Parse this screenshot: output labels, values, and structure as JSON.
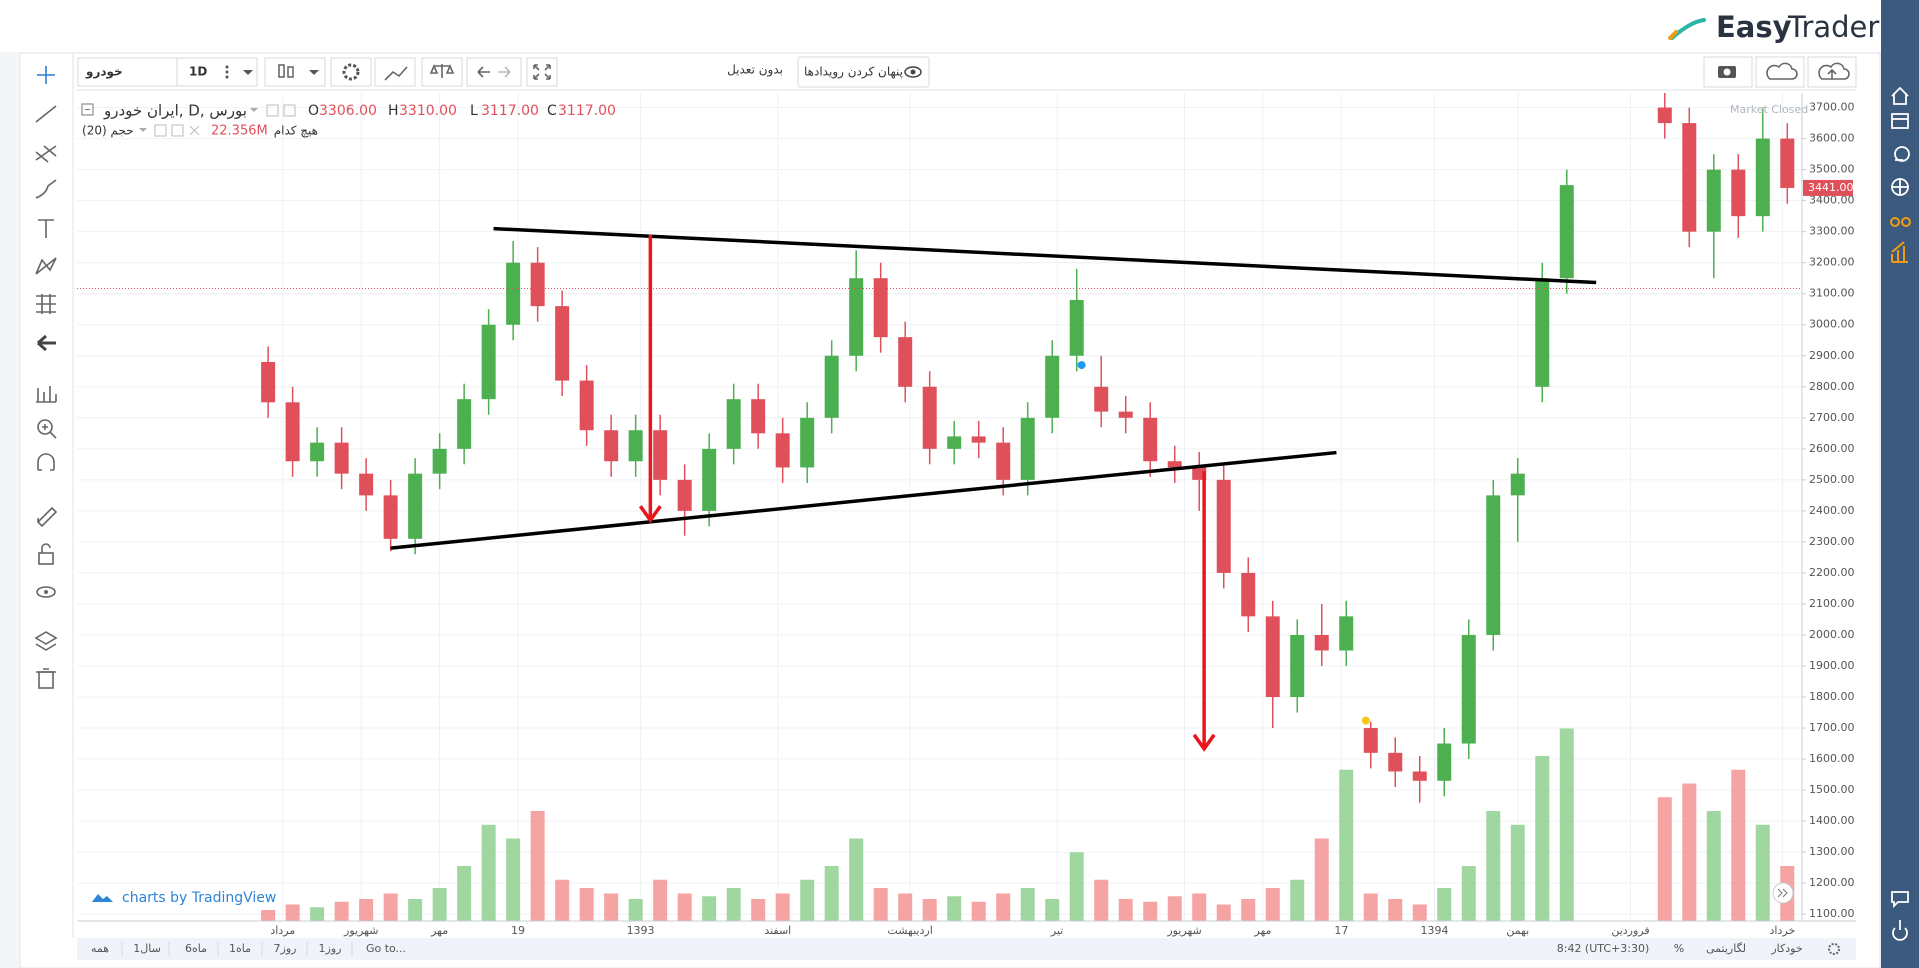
{
  "header": {
    "logo_a": "Easy",
    "logo_b": "Trader"
  },
  "toolbar": {
    "symbol": "خودرو",
    "interval": "1D",
    "adjustment": "بدون تعدیل",
    "hide_events": "پنهان کردن رویدادها"
  },
  "legend": {
    "title": "ایران خودرو, D, بورس",
    "volume_name": "حجم (20)",
    "volume_value": "22.356M",
    "volume_ma": "هیچ کدام",
    "market_status": "Market Closed"
  },
  "watermark": "charts by TradingView",
  "footer": {
    "ranges": [
      "همه",
      "1سال",
      "6ماه",
      "1ماه",
      "7روز",
      "1روز"
    ],
    "goto": "Go to...",
    "clock": "8:42 (UTC+3:30)",
    "percent": "%",
    "log": "لگاریتمی",
    "auto": "خودکار"
  },
  "chart_data": {
    "type": "candlestick",
    "ohlc": {
      "labels": [
        "O",
        "H",
        "L",
        "C"
      ],
      "values": [
        3306,
        3310,
        3117,
        3117
      ],
      "value_labels": [
        "3306.00",
        "3310.00",
        "3117.00",
        "3117.00"
      ]
    },
    "last_price": {
      "value": 3441,
      "label": "3441.00"
    },
    "up_color": "#4caf50",
    "down_color": "#e0505b",
    "volume_up_color": "#8fd08f",
    "volume_down_color": "#f39393",
    "x": [
      0,
      5,
      10,
      15,
      20,
      25,
      30,
      35,
      40,
      45,
      50,
      55,
      60,
      65,
      70,
      75,
      80,
      85,
      90,
      95,
      100,
      105,
      110,
      115,
      120,
      125,
      130,
      135,
      140,
      145,
      150,
      155,
      160,
      165,
      170,
      175,
      180,
      185,
      190,
      195,
      200,
      205,
      210,
      215,
      220,
      225,
      230,
      235,
      240,
      245,
      250,
      255,
      260,
      265,
      285,
      290,
      295,
      300,
      305,
      310
    ],
    "open": [
      2880,
      2750,
      2560,
      2620,
      2520,
      2450,
      2310,
      2520,
      2600,
      2760,
      3000,
      3200,
      3060,
      2820,
      2660,
      2560,
      2660,
      2500,
      2400,
      2600,
      2760,
      2650,
      2540,
      2700,
      2900,
      3150,
      2960,
      2800,
      2600,
      2640,
      2620,
      2500,
      2700,
      2900,
      2800,
      2720,
      2700,
      2560,
      2540,
      2500,
      2200,
      2060,
      1800,
      2000,
      1950,
      1700,
      1620,
      1560,
      1530,
      1650,
      2000,
      2450,
      2800,
      3150,
      3700,
      3650,
      3300,
      3500,
      3350,
      3600
    ],
    "high": [
      2930,
      2800,
      2670,
      2670,
      2570,
      2500,
      2570,
      2650,
      2810,
      3050,
      3270,
      3250,
      3110,
      2870,
      2710,
      2710,
      2710,
      2550,
      2650,
      2810,
      2810,
      2700,
      2750,
      2950,
      3240,
      3200,
      3010,
      2850,
      2690,
      2690,
      2670,
      2750,
      2950,
      3180,
      2900,
      2770,
      2750,
      2610,
      2590,
      2550,
      2250,
      2110,
      2050,
      2100,
      2110,
      1720,
      1670,
      1610,
      1700,
      2050,
      2500,
      2570,
      3200,
      3500,
      3760,
      3700,
      3550,
      3550,
      3700,
      3650
    ],
    "low": [
      2700,
      2510,
      2510,
      2470,
      2400,
      2270,
      2260,
      2470,
      2550,
      2710,
      2950,
      3010,
      2770,
      2610,
      2510,
      2510,
      2450,
      2320,
      2350,
      2550,
      2600,
      2490,
      2490,
      2650,
      2850,
      2910,
      2750,
      2550,
      2550,
      2570,
      2450,
      2450,
      2650,
      2850,
      2670,
      2650,
      2510,
      2490,
      2400,
      2150,
      2010,
      1700,
      1750,
      1900,
      1900,
      1570,
      1510,
      1460,
      1480,
      1600,
      1950,
      2300,
      2750,
      3100,
      3600,
      3250,
      3150,
      3280,
      3300,
      3390
    ],
    "close": [
      2750,
      2560,
      2620,
      2520,
      2450,
      2310,
      2520,
      2600,
      2760,
      3000,
      3200,
      3060,
      2820,
      2660,
      2560,
      2660,
      2500,
      2400,
      2600,
      2760,
      2650,
      2540,
      2700,
      2900,
      3150,
      2960,
      2800,
      2600,
      2640,
      2620,
      2500,
      2700,
      2900,
      3080,
      2720,
      2700,
      2560,
      2540,
      2500,
      2200,
      2060,
      1800,
      2000,
      1950,
      2060,
      1620,
      1560,
      1530,
      1650,
      2000,
      2450,
      2520,
      3150,
      3450,
      3650,
      3300,
      3500,
      3350,
      3600,
      3441
    ],
    "volume": [
      4,
      6,
      5,
      7,
      8,
      10,
      8,
      12,
      20,
      35,
      30,
      40,
      15,
      12,
      10,
      8,
      15,
      10,
      9,
      12,
      8,
      10,
      15,
      20,
      30,
      12,
      10,
      8,
      9,
      7,
      10,
      12,
      8,
      25,
      15,
      8,
      7,
      9,
      10,
      6,
      8,
      12,
      15,
      30,
      55,
      10,
      8,
      6,
      12,
      20,
      40,
      35,
      60,
      70,
      45,
      50,
      40,
      55,
      35,
      20
    ],
    "vlim": [
      0,
      80
    ],
    "xlim": [
      -39,
      313
    ],
    "ylim": [
      1078,
      3747
    ],
    "xticks": [
      {
        "value": 3,
        "label": "مرداد"
      },
      {
        "value": 19,
        "label": "شهریور"
      },
      {
        "value": 35,
        "label": "مهر"
      },
      {
        "value": 51,
        "label": "19"
      },
      {
        "value": 76,
        "label": "1393"
      },
      {
        "value": 104,
        "label": "اسفند"
      },
      {
        "value": 131,
        "label": "اردیبهشت"
      },
      {
        "value": 161,
        "label": "تیر"
      },
      {
        "value": 187,
        "label": "شهریور"
      },
      {
        "value": 203,
        "label": "مهر"
      },
      {
        "value": 219,
        "label": "17"
      },
      {
        "value": 238,
        "label": "1394"
      },
      {
        "value": 255,
        "label": "بهمن"
      },
      {
        "value": 278,
        "label": "فروردین"
      },
      {
        "value": 309,
        "label": "خرداد"
      }
    ],
    "yticks": [
      {
        "value": 1100,
        "label": "1100.00"
      },
      {
        "value": 1200,
        "label": "1200.00"
      },
      {
        "value": 1300,
        "label": "1300.00"
      },
      {
        "value": 1400,
        "label": "1400.00"
      },
      {
        "value": 1500,
        "label": "1500.00"
      },
      {
        "value": 1600,
        "label": "1600.00"
      },
      {
        "value": 1700,
        "label": "1700.00"
      },
      {
        "value": 1800,
        "label": "1800.00"
      },
      {
        "value": 1900,
        "label": "1900.00"
      },
      {
        "value": 2000,
        "label": "2000.00"
      },
      {
        "value": 2100,
        "label": "2100.00"
      },
      {
        "value": 2200,
        "label": "2200.00"
      },
      {
        "value": 2300,
        "label": "2300.00"
      },
      {
        "value": 2400,
        "label": "2400.00"
      },
      {
        "value": 2500,
        "label": "2500.00"
      },
      {
        "value": 2600,
        "label": "2600.00"
      },
      {
        "value": 2700,
        "label": "2700.00"
      },
      {
        "value": 2800,
        "label": "2800.00"
      },
      {
        "value": 2900,
        "label": "2900.00"
      },
      {
        "value": 3000,
        "label": "3000.00"
      },
      {
        "value": 3100,
        "label": "3100.00"
      },
      {
        "value": 3200,
        "label": "3200.00"
      },
      {
        "value": 3300,
        "label": "3300.00"
      },
      {
        "value": 3400,
        "label": "3400.00"
      },
      {
        "value": 3500,
        "label": "3500.00"
      },
      {
        "value": 3600,
        "label": "3600.00"
      },
      {
        "value": 3700,
        "label": "3700.00"
      }
    ],
    "grid": true,
    "events": [
      {
        "x": 166,
        "y": 2870,
        "color": "#2196f3"
      },
      {
        "x": 224,
        "y": 1724,
        "color": "#f5c518"
      }
    ],
    "drawings": [
      {
        "type": "trend_line",
        "color": "#000000",
        "x": [
          46,
          271
        ],
        "y": [
          3310,
          3136
        ]
      },
      {
        "type": "trend_line",
        "color": "#000000",
        "x": [
          25,
          218
        ],
        "y": [
          2280,
          2588
        ]
      },
      {
        "type": "arrow",
        "color": "#e8171d",
        "x": [
          78,
          78
        ],
        "y": [
          3290,
          2370
        ]
      },
      {
        "type": "arrow",
        "color": "#e8171d",
        "x": [
          191,
          191
        ],
        "y": [
          2528,
          1633
        ]
      }
    ]
  }
}
